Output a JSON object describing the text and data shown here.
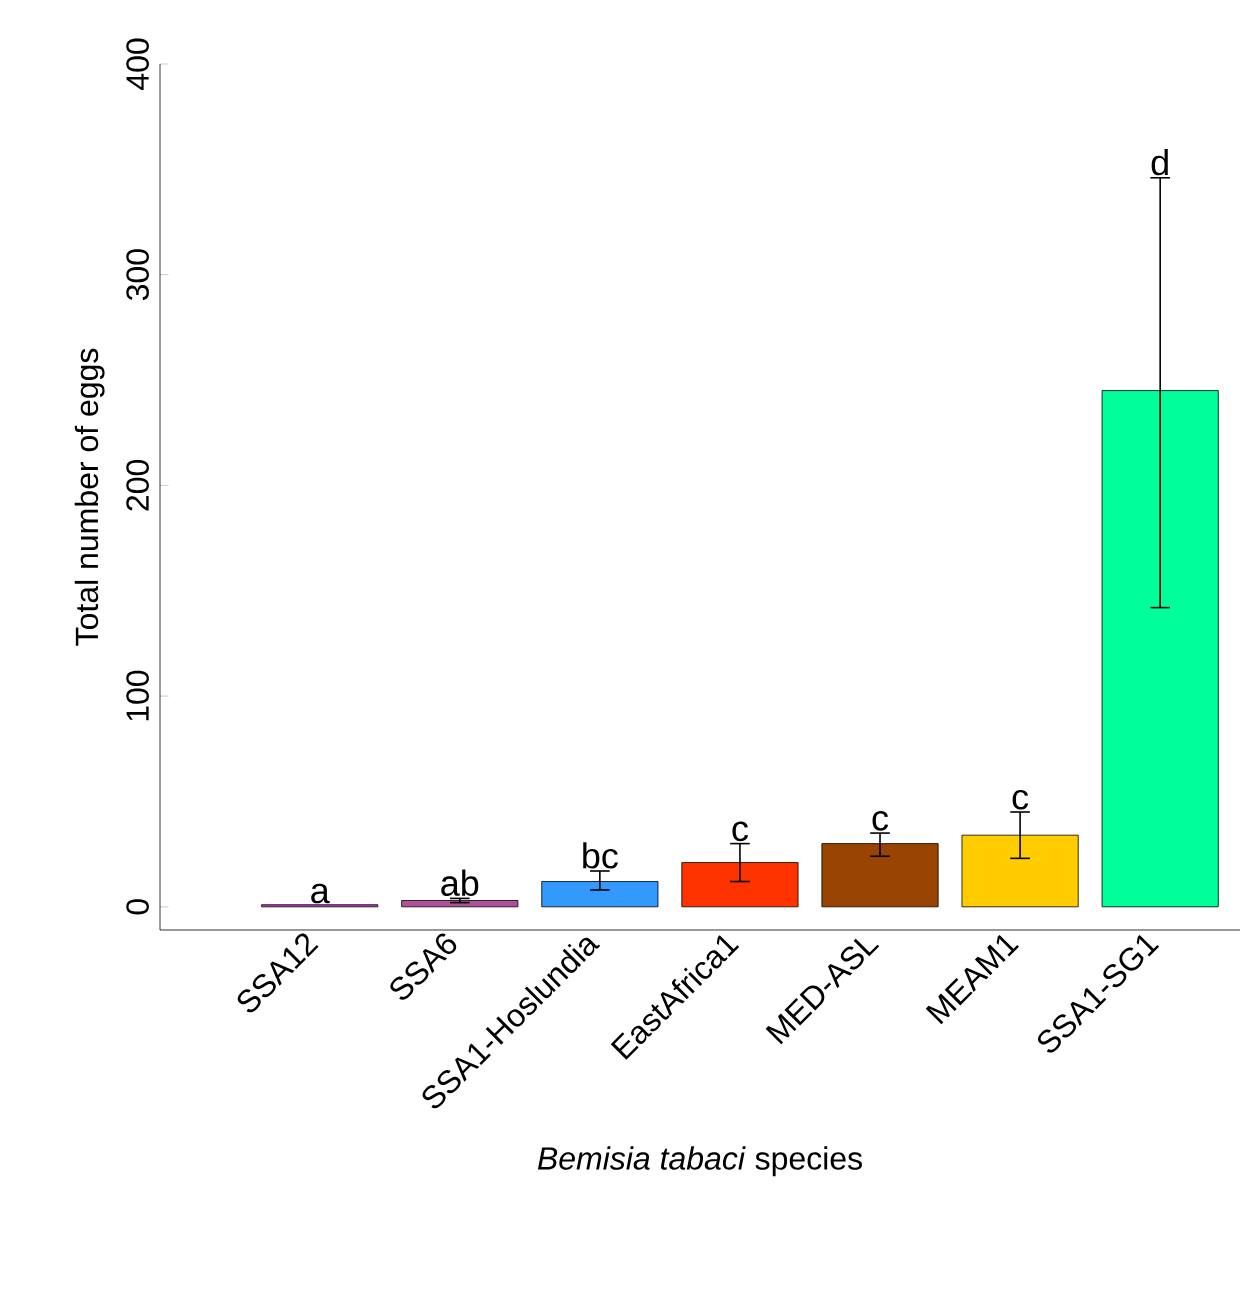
{
  "chart_data": {
    "type": "bar",
    "xlabel": "*Bemisia tabaci* species",
    "ylabel": "Total number of eggs",
    "categories": [
      "SSA12",
      "SSA6",
      "SSA1-Hoslundia",
      "EastAfrica1",
      "MED-ASL",
      "MEAM1",
      "SSA1-SG1"
    ],
    "values": [
      1,
      3,
      12,
      21,
      30,
      34,
      245
    ],
    "errors": [
      null,
      [
        2,
        4
      ],
      [
        8,
        17
      ],
      [
        12,
        30
      ],
      [
        24,
        35
      ],
      [
        23,
        45
      ],
      [
        142,
        346
      ]
    ],
    "colors": [
      "#cc33cc",
      "#b0509a",
      "#3399ff",
      "#ff3300",
      "#994400",
      "#ffcc00",
      "#00ff99"
    ],
    "ylim": [
      -11,
      400
    ],
    "yticks": [
      0,
      100,
      200,
      300,
      400
    ],
    "annotations": [
      {
        "text": "a",
        "x": "SSA12",
        "y": 0.5
      },
      {
        "text": "ab",
        "x": "SSA6",
        "y": 4
      },
      {
        "text": "bc",
        "x": "SSA1-Hoslundia",
        "y": 17
      },
      {
        "text": "c",
        "x": "EastAfrica1",
        "y": 30
      },
      {
        "text": "c",
        "x": "MED-ASL",
        "y": 35
      },
      {
        "text": "c",
        "x": "MEAM1",
        "y": 45
      },
      {
        "text": "d",
        "x": "SSA1-SG1",
        "y": 346
      }
    ]
  }
}
